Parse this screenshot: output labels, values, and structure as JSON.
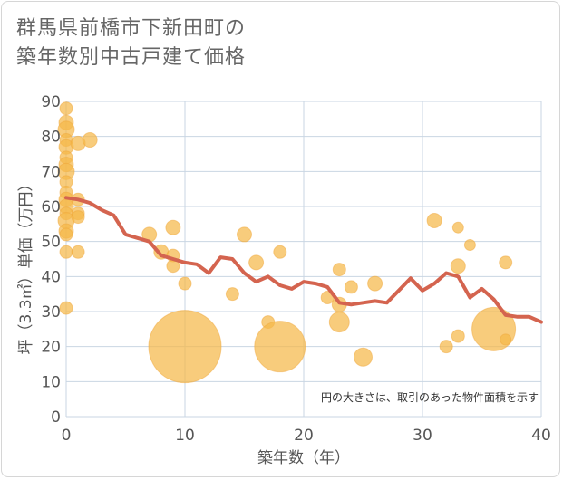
{
  "title_lines": [
    "群馬県前橋市下新田町の",
    "築年数別中古戸建て価格"
  ],
  "colors": {
    "bubble": "#f5b94a",
    "bubble_stroke": "#f0a83c",
    "line": "#d4644f",
    "grid": "#c9d6e3",
    "plot_bg": "#ffffff"
  },
  "chart_data": {
    "type": "scatter",
    "title": "群馬県前橋市下新田町の築年数別中古戸建て価格",
    "xlabel": "築年数（年）",
    "ylabel": "坪（3.3㎡）単価（万円）",
    "xlim": [
      0,
      40
    ],
    "ylim": [
      0,
      90
    ],
    "xticks": [
      0,
      10,
      20,
      30,
      40
    ],
    "yticks": [
      0,
      10,
      20,
      30,
      40,
      50,
      60,
      70,
      80,
      90
    ],
    "grid": true,
    "note": "円の大きさは、取引のあった物件面積を示す",
    "bubbles": [
      {
        "x": 0,
        "y": 88,
        "r": 7
      },
      {
        "x": 0,
        "y": 84,
        "r": 8
      },
      {
        "x": 0,
        "y": 82,
        "r": 9
      },
      {
        "x": 0,
        "y": 79,
        "r": 7
      },
      {
        "x": 0,
        "y": 77,
        "r": 8
      },
      {
        "x": 0,
        "y": 74,
        "r": 7
      },
      {
        "x": 0,
        "y": 72,
        "r": 8
      },
      {
        "x": 0,
        "y": 70,
        "r": 9
      },
      {
        "x": 0,
        "y": 67,
        "r": 7
      },
      {
        "x": 0,
        "y": 64,
        "r": 7
      },
      {
        "x": 0,
        "y": 62,
        "r": 8
      },
      {
        "x": 0,
        "y": 60,
        "r": 8
      },
      {
        "x": 0,
        "y": 58,
        "r": 7
      },
      {
        "x": 0,
        "y": 56,
        "r": 9
      },
      {
        "x": 0,
        "y": 53,
        "r": 8
      },
      {
        "x": 0,
        "y": 52,
        "r": 7
      },
      {
        "x": 0,
        "y": 47,
        "r": 7
      },
      {
        "x": 0,
        "y": 31,
        "r": 7
      },
      {
        "x": 1,
        "y": 78,
        "r": 8
      },
      {
        "x": 1,
        "y": 62,
        "r": 7
      },
      {
        "x": 1,
        "y": 58,
        "r": 7
      },
      {
        "x": 1,
        "y": 57,
        "r": 7
      },
      {
        "x": 1,
        "y": 47,
        "r": 7
      },
      {
        "x": 2,
        "y": 79,
        "r": 8
      },
      {
        "x": 7,
        "y": 52,
        "r": 8
      },
      {
        "x": 8,
        "y": 47,
        "r": 8
      },
      {
        "x": 9,
        "y": 54,
        "r": 8
      },
      {
        "x": 9,
        "y": 46,
        "r": 7
      },
      {
        "x": 9,
        "y": 43,
        "r": 7
      },
      {
        "x": 10,
        "y": 38,
        "r": 7
      },
      {
        "x": 10,
        "y": 20,
        "r": 40
      },
      {
        "x": 14,
        "y": 35,
        "r": 7
      },
      {
        "x": 15,
        "y": 52,
        "r": 8
      },
      {
        "x": 16,
        "y": 44,
        "r": 8
      },
      {
        "x": 17,
        "y": 27,
        "r": 7
      },
      {
        "x": 18,
        "y": 47,
        "r": 7
      },
      {
        "x": 18,
        "y": 20,
        "r": 28
      },
      {
        "x": 22,
        "y": 34,
        "r": 7
      },
      {
        "x": 23,
        "y": 42,
        "r": 7
      },
      {
        "x": 23,
        "y": 32,
        "r": 8
      },
      {
        "x": 23,
        "y": 27,
        "r": 11
      },
      {
        "x": 24,
        "y": 37,
        "r": 7
      },
      {
        "x": 25,
        "y": 17,
        "r": 10
      },
      {
        "x": 26,
        "y": 38,
        "r": 8
      },
      {
        "x": 31,
        "y": 56,
        "r": 8
      },
      {
        "x": 32,
        "y": 20,
        "r": 7
      },
      {
        "x": 33,
        "y": 54,
        "r": 6
      },
      {
        "x": 33,
        "y": 43,
        "r": 8
      },
      {
        "x": 33,
        "y": 23,
        "r": 7
      },
      {
        "x": 34,
        "y": 49,
        "r": 6
      },
      {
        "x": 36,
        "y": 25,
        "r": 24
      },
      {
        "x": 37,
        "y": 44,
        "r": 7
      },
      {
        "x": 37,
        "y": 22,
        "r": 6
      }
    ],
    "trend_line": [
      {
        "x": 0,
        "y": 62.5
      },
      {
        "x": 1,
        "y": 62
      },
      {
        "x": 2,
        "y": 61
      },
      {
        "x": 3,
        "y": 59
      },
      {
        "x": 4,
        "y": 57.5
      },
      {
        "x": 5,
        "y": 52
      },
      {
        "x": 6,
        "y": 51
      },
      {
        "x": 7,
        "y": 50
      },
      {
        "x": 8,
        "y": 46
      },
      {
        "x": 9,
        "y": 45
      },
      {
        "x": 10,
        "y": 44
      },
      {
        "x": 11,
        "y": 43.5
      },
      {
        "x": 12,
        "y": 41
      },
      {
        "x": 13,
        "y": 45.5
      },
      {
        "x": 14,
        "y": 45
      },
      {
        "x": 15,
        "y": 41
      },
      {
        "x": 16,
        "y": 38.5
      },
      {
        "x": 17,
        "y": 40
      },
      {
        "x": 18,
        "y": 37.5
      },
      {
        "x": 19,
        "y": 36.5
      },
      {
        "x": 20,
        "y": 38.5
      },
      {
        "x": 21,
        "y": 38
      },
      {
        "x": 22,
        "y": 37
      },
      {
        "x": 23,
        "y": 32.5
      },
      {
        "x": 24,
        "y": 32
      },
      {
        "x": 25,
        "y": 32.5
      },
      {
        "x": 26,
        "y": 33
      },
      {
        "x": 27,
        "y": 32.5
      },
      {
        "x": 28,
        "y": 36
      },
      {
        "x": 29,
        "y": 39.5
      },
      {
        "x": 30,
        "y": 36
      },
      {
        "x": 31,
        "y": 38
      },
      {
        "x": 32,
        "y": 41
      },
      {
        "x": 33,
        "y": 40
      },
      {
        "x": 34,
        "y": 34
      },
      {
        "x": 35,
        "y": 36.5
      },
      {
        "x": 36,
        "y": 33.5
      },
      {
        "x": 37,
        "y": 29
      },
      {
        "x": 38,
        "y": 28.5
      },
      {
        "x": 39,
        "y": 28.5
      },
      {
        "x": 40,
        "y": 27
      }
    ]
  }
}
